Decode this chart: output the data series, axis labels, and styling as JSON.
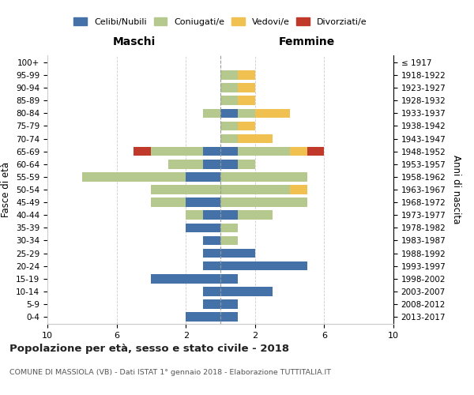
{
  "age_groups": [
    "0-4",
    "5-9",
    "10-14",
    "15-19",
    "20-24",
    "25-29",
    "30-34",
    "35-39",
    "40-44",
    "45-49",
    "50-54",
    "55-59",
    "60-64",
    "65-69",
    "70-74",
    "75-79",
    "80-84",
    "85-89",
    "90-94",
    "95-99",
    "100+"
  ],
  "birth_years": [
    "2013-2017",
    "2008-2012",
    "2003-2007",
    "1998-2002",
    "1993-1997",
    "1988-1992",
    "1983-1987",
    "1978-1982",
    "1973-1977",
    "1968-1972",
    "1963-1967",
    "1958-1962",
    "1953-1957",
    "1948-1952",
    "1943-1947",
    "1938-1942",
    "1933-1937",
    "1928-1932",
    "1923-1927",
    "1918-1922",
    "≤ 1917"
  ],
  "colors": {
    "celibi": "#4472a8",
    "coniugati": "#b5c98e",
    "vedovi": "#f0c050",
    "divorziati": "#c0392b"
  },
  "males": {
    "celibi": [
      2,
      1,
      1,
      4,
      1,
      1,
      1,
      2,
      1,
      2,
      0,
      2,
      1,
      1,
      0,
      0,
      0,
      0,
      0,
      0,
      0
    ],
    "coniugati": [
      0,
      0,
      0,
      0,
      0,
      0,
      0,
      0,
      1,
      2,
      4,
      6,
      2,
      3,
      0,
      0,
      1,
      0,
      0,
      0,
      0
    ],
    "vedovi": [
      0,
      0,
      0,
      0,
      0,
      0,
      0,
      0,
      0,
      0,
      0,
      0,
      0,
      0,
      0,
      0,
      0,
      0,
      0,
      0,
      0
    ],
    "divorziati": [
      0,
      0,
      0,
      0,
      0,
      0,
      0,
      0,
      0,
      0,
      0,
      0,
      0,
      1,
      0,
      0,
      0,
      0,
      0,
      0,
      0
    ]
  },
  "females": {
    "celibi": [
      1,
      1,
      3,
      1,
      5,
      2,
      0,
      0,
      1,
      0,
      0,
      0,
      1,
      1,
      0,
      0,
      1,
      0,
      0,
      0,
      0
    ],
    "coniugati": [
      0,
      0,
      0,
      0,
      0,
      0,
      1,
      1,
      2,
      5,
      4,
      5,
      1,
      3,
      1,
      1,
      1,
      1,
      1,
      1,
      0
    ],
    "vedovi": [
      0,
      0,
      0,
      0,
      0,
      0,
      0,
      0,
      0,
      0,
      1,
      0,
      0,
      1,
      2,
      1,
      2,
      1,
      1,
      1,
      0
    ],
    "divorziati": [
      0,
      0,
      0,
      0,
      0,
      0,
      0,
      0,
      0,
      0,
      0,
      0,
      0,
      1,
      0,
      0,
      0,
      0,
      0,
      0,
      0
    ]
  },
  "xlim": 10,
  "title": "Popolazione per età, sesso e stato civile - 2018",
  "subtitle": "COMUNE DI MASSIOLA (VB) - Dati ISTAT 1° gennaio 2018 - Elaborazione TUTTITALIA.IT",
  "ylabel_left": "Fasce di età",
  "ylabel_right": "Anni di nascita",
  "xlabel_maschi": "Maschi",
  "xlabel_femmine": "Femmine",
  "legend_labels": [
    "Celibi/Nubili",
    "Coniugati/e",
    "Vedovi/e",
    "Divorziati/e"
  ],
  "xtick_vals": [
    -10,
    -6,
    -2,
    2,
    6,
    10
  ],
  "xtick_labels": [
    "10",
    "6",
    "2",
    "2",
    "6",
    "10"
  ],
  "background_color": "#ffffff",
  "grid_color": "#cccccc"
}
